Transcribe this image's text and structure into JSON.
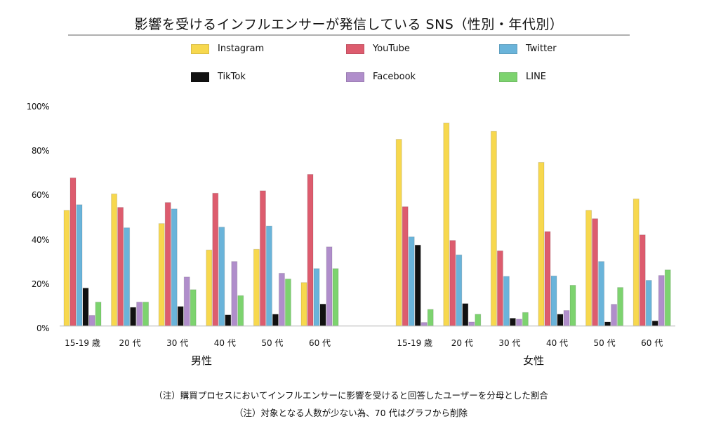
{
  "chart_data": {
    "type": "bar",
    "title": "影響を受けるインフルエンサーが発信している SNS（性別・年代別）",
    "xlabel": "",
    "ylabel": "",
    "ylim": [
      0,
      100
    ],
    "y_ticks": [
      "0%",
      "20%",
      "40%",
      "60%",
      "80%",
      "100%"
    ],
    "y_tick_values": [
      0,
      20,
      40,
      60,
      80,
      100
    ],
    "grid": false,
    "legend_position": "top",
    "groups": [
      {
        "name": "男性",
        "categories": [
          "15-19 歳",
          "20 代",
          "30 代",
          "40 代",
          "50 代",
          "60 代"
        ]
      },
      {
        "name": "女性",
        "categories": [
          "15-19 歳",
          "20 代",
          "30 代",
          "40 代",
          "50 代",
          "60 代"
        ]
      }
    ],
    "series": [
      {
        "name": "Instagram",
        "color": "#f7d84e",
        "male": [
          52.0,
          59.4,
          46.0,
          34.1,
          34.4,
          19.4
        ],
        "female": [
          84.0,
          91.4,
          87.6,
          73.6,
          52.0,
          57.1
        ]
      },
      {
        "name": "YouTube",
        "color": "#dd5c6e",
        "male": [
          66.6,
          53.3,
          55.5,
          59.7,
          60.8,
          68.2
        ],
        "female": [
          53.6,
          38.4,
          33.7,
          42.4,
          48.2,
          40.9
        ]
      },
      {
        "name": "Twitter",
        "color": "#6ab4da",
        "male": [
          54.5,
          44.1,
          52.6,
          44.4,
          44.9,
          25.7
        ],
        "female": [
          40.0,
          31.9,
          22.2,
          22.4,
          28.9,
          20.4
        ]
      },
      {
        "name": "TikTok",
        "color": "#111111",
        "male": [
          16.9,
          8.2,
          8.6,
          4.8,
          5.1,
          9.7
        ],
        "female": [
          36.3,
          9.9,
          3.3,
          5.1,
          1.6,
          2.1
        ]
      },
      {
        "name": "Facebook",
        "color": "#b08ecb",
        "male": [
          4.6,
          10.6,
          21.9,
          28.9,
          23.6,
          35.5
        ],
        "female": [
          1.4,
          1.6,
          2.9,
          6.8,
          9.6,
          22.6
        ]
      },
      {
        "name": "LINE",
        "color": "#7dd36f",
        "male": [
          10.6,
          10.6,
          16.2,
          13.5,
          21.0,
          25.7
        ],
        "female": [
          7.3,
          5.1,
          5.9,
          18.2,
          17.2,
          25.1
        ]
      }
    ]
  },
  "notes": [
    "（注）購買プロセスにおいてインフルエンサーに影響を受けると回答したユーザーを分母とした割合",
    "（注）対象となる人数が少ない為、70 代はグラフから削除"
  ]
}
